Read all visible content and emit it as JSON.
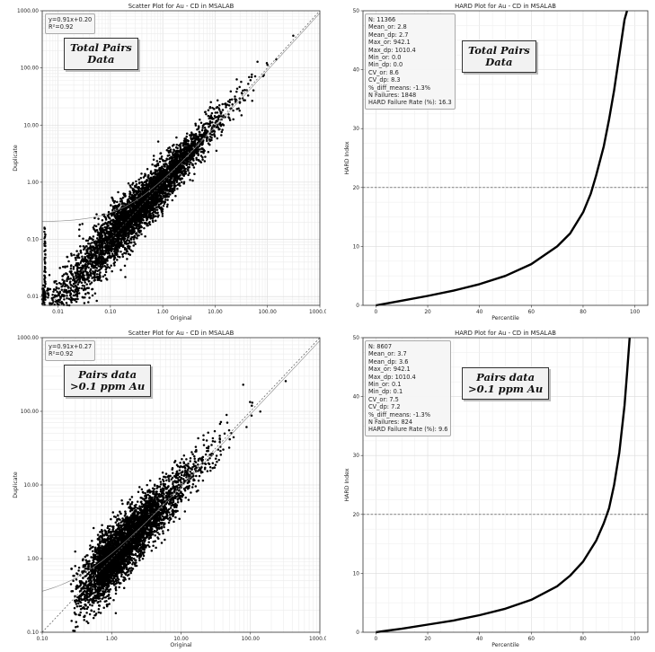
{
  "chart_data": [
    {
      "type": "scatter",
      "title": "Scatter Plot for Au - CD in MSALAB",
      "xlabel": "Original",
      "ylabel": "Duplicate",
      "scale": "log",
      "xlim": [
        0.005,
        1000
      ],
      "ylim": [
        0.007,
        1000
      ],
      "xticks": [
        0.01,
        0.1,
        1.0,
        10.0,
        100.0,
        1000.0
      ],
      "xtick_labels": [
        "0.01",
        "0.10",
        "1.00",
        "10.00",
        "100.00",
        "1000.00"
      ],
      "yticks": [
        0.01,
        0.1,
        1.0,
        10.0,
        100.0,
        1000.0
      ],
      "ytick_labels": [
        "0.01",
        "0.10",
        "1.00",
        "10.00",
        "100.00",
        "1000.00"
      ],
      "regression": {
        "slope": 0.91,
        "intercept": 0.2
      },
      "legend_lines": [
        "y=0.91x+0.20",
        "R²=0.92"
      ],
      "annotation": "Total Pairs\nData",
      "n_points": 11366,
      "x_min_data": 0.005,
      "grid": true
    },
    {
      "type": "line",
      "title": "HARD Plot for Au - CD in MSALAB",
      "xlabel": "Percentile",
      "ylabel": "HARD Index",
      "xlim": [
        -5,
        105
      ],
      "ylim": [
        0,
        50
      ],
      "xticks": [
        0,
        20,
        40,
        60,
        80,
        100
      ],
      "yticks": [
        0,
        10,
        20,
        30,
        40,
        50
      ],
      "threshold": 20,
      "curve": {
        "x": [
          0,
          5,
          10,
          20,
          30,
          40,
          50,
          60,
          70,
          75,
          80,
          83,
          85,
          88,
          90,
          92,
          94,
          96,
          97
        ],
        "y": [
          0,
          0.4,
          0.8,
          1.6,
          2.5,
          3.6,
          5.0,
          7.0,
          10.0,
          12.2,
          15.8,
          19.0,
          22.0,
          27.0,
          31.5,
          36.5,
          42.5,
          48.5,
          50
        ]
      },
      "stats": [
        "N: 11366",
        "Mean_or: 2.8",
        "Mean_dp: 2.7",
        "Max_or: 942.1",
        "Max_dp: 1010.4",
        "Min_or: 0.0",
        "Min_dp: 0.0",
        "CV_or: 8.6",
        "CV_dp: 8.3",
        "%_diff_means: -1.3%",
        "N Failures: 1848",
        "HARD Failure Rate (%): 16.3"
      ],
      "annotation": "Total Pairs\nData",
      "grid": true
    },
    {
      "type": "scatter",
      "title": "Scatter Plot for Au - CD in MSALAB",
      "xlabel": "Original",
      "ylabel": "Duplicate",
      "scale": "log",
      "xlim": [
        0.1,
        1000
      ],
      "ylim": [
        0.1,
        1000
      ],
      "xticks": [
        0.1,
        1.0,
        10.0,
        100.0,
        1000.0
      ],
      "xtick_labels": [
        "0.10",
        "1.00",
        "10.00",
        "100.00",
        "1000.00"
      ],
      "yticks": [
        0.1,
        1.0,
        10.0,
        100.0,
        1000.0
      ],
      "ytick_labels": [
        "0.10",
        "1.00",
        "10.00",
        "100.00",
        "1000.00"
      ],
      "regression": {
        "slope": 0.91,
        "intercept": 0.27
      },
      "legend_lines": [
        "y=0.91x+0.27",
        "R²=0.92"
      ],
      "annotation": "Pairs data\n>0.1 ppm Au",
      "n_points": 8607,
      "x_min_data": 0.1,
      "grid": true
    },
    {
      "type": "line",
      "title": "HARD Plot for Au - CD in MSALAB",
      "xlabel": "Percentile",
      "ylabel": "HARD Index",
      "xlim": [
        -5,
        105
      ],
      "ylim": [
        0,
        50
      ],
      "xticks": [
        0,
        20,
        40,
        60,
        80,
        100
      ],
      "yticks": [
        0,
        10,
        20,
        30,
        40,
        50
      ],
      "threshold": 20,
      "curve": {
        "x": [
          0,
          5,
          10,
          20,
          30,
          40,
          50,
          60,
          70,
          75,
          80,
          85,
          88,
          90,
          92,
          94,
          96,
          97,
          98
        ],
        "y": [
          0,
          0.3,
          0.6,
          1.3,
          2.0,
          2.9,
          4.0,
          5.5,
          7.8,
          9.6,
          12.0,
          15.5,
          18.5,
          21.0,
          25.0,
          30.5,
          38.5,
          44.0,
          50
        ]
      },
      "stats": [
        "N: 8607",
        "Mean_or: 3.7",
        "Mean_dp: 3.6",
        "Max_or: 942.1",
        "Max_dp: 1010.4",
        "Min_or: 0.1",
        "Min_dp: 0.1",
        "CV_or: 7.5",
        "CV_dp: 7.2",
        "%_diff_means: -1.3%",
        "N Failures: 824",
        "HARD Failure Rate (%): 9.6"
      ],
      "annotation": "Pairs data\n>0.1 ppm Au",
      "grid": true
    }
  ]
}
